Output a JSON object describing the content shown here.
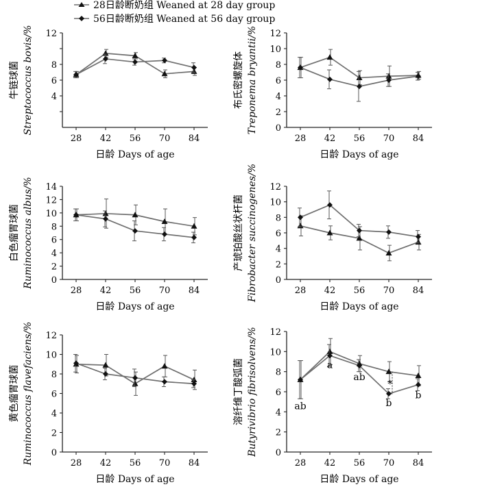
{
  "legend": {
    "placement": "top",
    "entries": [
      {
        "series": "w28",
        "marker": "triangle",
        "label": "28日龄断奶组  Weaned at 28 day group"
      },
      {
        "series": "w56",
        "marker": "diamond",
        "label": "56日龄断奶组  Weaned at 56 day group"
      }
    ]
  },
  "colors": {
    "w28": "#6e6e6e",
    "w56": "#6e6e6e",
    "marker": "#111111",
    "axis": "#222222"
  },
  "chart_data": [
    {
      "type": "line",
      "ylabel_cn": "牛链球菌",
      "ylabel_en": "Streptococcus bovis/%",
      "xlabel": "日龄  Days of age",
      "x": [
        28,
        42,
        56,
        70,
        84
      ],
      "ylim": [
        0,
        12
      ],
      "yticks": [
        2,
        4,
        6,
        8,
        10,
        12
      ],
      "ytick_labels": [
        "",
        "4",
        "6",
        "8",
        "",
        "12"
      ],
      "grid": false,
      "series": [
        {
          "name": "28日龄断奶组  Weaned at 28 day group",
          "key": "w28",
          "marker": "triangle",
          "values": [
            6.7,
            9.4,
            9.1,
            6.8,
            7.1
          ],
          "err": [
            0.4,
            0.5,
            0.4,
            0.5,
            0.5
          ]
        },
        {
          "name": "56日龄断奶组  Weaned at 56 day group",
          "key": "w56",
          "marker": "diamond",
          "values": [
            6.7,
            8.7,
            8.3,
            8.5,
            7.6
          ],
          "err": [
            0.4,
            0.6,
            0.4,
            0.3,
            0.6
          ]
        }
      ],
      "annotations": []
    },
    {
      "type": "line",
      "ylabel_cn": "布氏密螺旋体",
      "ylabel_en": "Treponema bryantii/%",
      "xlabel": "日龄  Days of age",
      "x": [
        28,
        42,
        56,
        70,
        84
      ],
      "ylim": [
        0,
        12
      ],
      "yticks": [
        0,
        2,
        4,
        6,
        8,
        10,
        12
      ],
      "ytick_labels": [
        "0",
        "2",
        "4",
        "6",
        "8",
        "10",
        "12"
      ],
      "grid": false,
      "series": [
        {
          "name": "28日龄断奶组  Weaned at 28 day group",
          "key": "w28",
          "marker": "triangle",
          "values": [
            7.6,
            8.9,
            6.3,
            6.5,
            6.6
          ],
          "err": [
            1.3,
            1.0,
            0.9,
            1.3,
            0.5
          ]
        },
        {
          "name": "56日龄断奶组  Weaned at 56 day group",
          "key": "w56",
          "marker": "diamond",
          "values": [
            7.6,
            6.1,
            5.2,
            6.0,
            6.5
          ],
          "err": [
            1.3,
            1.2,
            1.9,
            0.8,
            0.5
          ]
        }
      ],
      "annotations": []
    },
    {
      "type": "line",
      "ylabel_cn": "白色瘤胃球菌",
      "ylabel_en": "Ruminococcus albus/%",
      "xlabel": "日龄  Days of age",
      "x": [
        28,
        42,
        56,
        70,
        84
      ],
      "ylim": [
        0,
        14
      ],
      "yticks": [
        0,
        2,
        4,
        6,
        8,
        10,
        12,
        14
      ],
      "ytick_labels": [
        "0",
        "2",
        "4",
        "6",
        "8",
        "10",
        "12",
        "14"
      ],
      "grid": false,
      "series": [
        {
          "name": "28日龄断奶组  Weaned at 28 day group",
          "key": "w28",
          "marker": "triangle",
          "values": [
            9.7,
            9.9,
            9.7,
            8.7,
            8.0
          ],
          "err": [
            0.9,
            2.2,
            1.5,
            1.9,
            1.3
          ]
        },
        {
          "name": "56日龄断奶组  Weaned at 56 day group",
          "key": "w56",
          "marker": "diamond",
          "values": [
            9.7,
            9.1,
            7.3,
            6.8,
            6.3
          ],
          "err": [
            0.9,
            1.2,
            1.5,
            1.0,
            0.8
          ]
        }
      ],
      "annotations": []
    },
    {
      "type": "line",
      "ylabel_cn": "产琥珀酸丝状杆菌",
      "ylabel_en": "Fibrobacter succinogenes/%",
      "xlabel": "日龄  Days of age",
      "x": [
        28,
        42,
        56,
        70,
        84
      ],
      "ylim": [
        0,
        12
      ],
      "yticks": [
        0,
        2,
        4,
        6,
        8,
        10,
        12
      ],
      "ytick_labels": [
        "0",
        "2",
        "4",
        "6",
        "8",
        "10",
        "12"
      ],
      "grid": false,
      "series": [
        {
          "name": "28日龄断奶组  Weaned at 28 day group",
          "key": "w28",
          "marker": "triangle",
          "values": [
            6.9,
            6.0,
            5.3,
            3.4,
            4.8
          ],
          "err": [
            1.3,
            0.9,
            1.5,
            1.0,
            1.0
          ]
        },
        {
          "name": "56日龄断奶组  Weaned at 56 day group",
          "key": "w56",
          "marker": "diamond",
          "values": [
            8.0,
            9.6,
            6.3,
            6.1,
            5.5
          ],
          "err": [
            1.2,
            1.8,
            0.8,
            0.8,
            0.8
          ]
        }
      ],
      "annotations": []
    },
    {
      "type": "line",
      "ylabel_cn": "黄色瘤胃球菌",
      "ylabel_en": "Ruminococcus flavefaciens/%",
      "xlabel": "日龄  Days of age",
      "x": [
        28,
        42,
        56,
        70,
        84
      ],
      "ylim": [
        0,
        12
      ],
      "yticks": [
        0,
        2,
        4,
        6,
        8,
        10,
        12
      ],
      "ytick_labels": [
        "0",
        "2",
        "4",
        "6",
        "8",
        "10",
        "12"
      ],
      "grid": false,
      "series": [
        {
          "name": "28日龄断奶组  Weaned at 28 day group",
          "key": "w28",
          "marker": "triangle",
          "values": [
            9.0,
            8.9,
            7.0,
            8.8,
            7.4
          ],
          "err": [
            0.9,
            1.1,
            1.2,
            1.1,
            1.0
          ]
        },
        {
          "name": "56日龄断奶组  Weaned at 56 day group",
          "key": "w56",
          "marker": "diamond",
          "values": [
            9.1,
            8.0,
            7.6,
            7.2,
            7.0
          ],
          "err": [
            0.9,
            0.6,
            0.9,
            0.5,
            0.4
          ]
        }
      ],
      "annotations": []
    },
    {
      "type": "line",
      "ylabel_cn": "溶纤维丁酸弧菌",
      "ylabel_en": "Butyrivibrio fibrisolvens/%",
      "xlabel": "日龄  Days of age",
      "x": [
        28,
        42,
        56,
        70,
        84
      ],
      "ylim": [
        0,
        12
      ],
      "yticks": [
        0,
        2,
        4,
        6,
        8,
        10,
        12
      ],
      "ytick_labels": [
        "0",
        "2",
        "4",
        "6",
        "8",
        "10",
        "12"
      ],
      "grid": false,
      "series": [
        {
          "name": "28日龄断奶组  Weaned at 28 day group",
          "key": "w28",
          "marker": "triangle",
          "values": [
            7.2,
            10.0,
            8.8,
            8.0,
            7.6
          ],
          "err": [
            1.9,
            1.3,
            0.8,
            1.0,
            1.0
          ]
        },
        {
          "name": "56日龄断奶组  Weaned at 56 day group",
          "key": "w56",
          "marker": "diamond",
          "values": [
            7.2,
            9.6,
            8.6,
            5.8,
            6.7
          ],
          "err": [
            1.9,
            1.1,
            0.6,
            0.5,
            0.6
          ]
        }
      ],
      "annotations": [
        {
          "text": "ab",
          "x": 28,
          "y": 4.6
        },
        {
          "text": "a",
          "x": 42,
          "y": 8.7
        },
        {
          "text": "ab",
          "x": 56,
          "y": 7.5
        },
        {
          "text": "b",
          "x": 70,
          "y": 4.9
        },
        {
          "text": "b",
          "x": 84,
          "y": 5.7
        },
        {
          "text": "*",
          "x": 70.6,
          "y": 6.8
        }
      ],
      "significance_bracket": {
        "x": 70,
        "y_from": 5.8,
        "y_to": 8.0
      }
    }
  ]
}
